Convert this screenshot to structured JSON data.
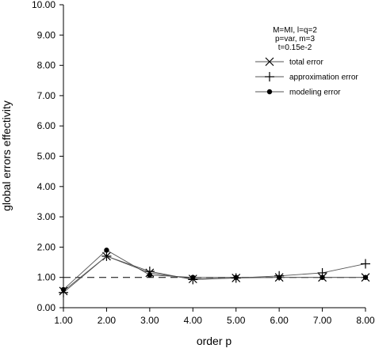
{
  "chart_data": {
    "type": "line",
    "xlabel": "order p",
    "ylabel": "global errors effectivity",
    "xlim": [
      1,
      8
    ],
    "ylim": [
      0,
      10
    ],
    "x_ticks": [
      "1.00",
      "2.00",
      "3.00",
      "4.00",
      "5.00",
      "6.00",
      "7.00",
      "8.00"
    ],
    "y_ticks": [
      "0.00",
      "1.00",
      "2.00",
      "3.00",
      "4.00",
      "5.00",
      "6.00",
      "7.00",
      "8.00",
      "9.00",
      "10.00"
    ],
    "grid": false,
    "legend_position": "top-right",
    "annotation_lines": [
      "M=MI, l=q=2",
      "p=var, m=3",
      "t=0.15e-2"
    ],
    "reference_line": {
      "y": 1.0,
      "style": "dashed"
    },
    "x": [
      1,
      2,
      3,
      4,
      5,
      6,
      7,
      8
    ],
    "series": [
      {
        "name": "total error",
        "marker": "x",
        "values": [
          0.55,
          1.7,
          1.15,
          0.95,
          0.98,
          1.0,
          1.0,
          1.0
        ]
      },
      {
        "name": "approximation error",
        "marker": "plus",
        "values": [
          0.5,
          1.7,
          1.2,
          0.93,
          0.98,
          1.05,
          1.15,
          1.45
        ]
      },
      {
        "name": "modeling error",
        "marker": "dot",
        "values": [
          0.6,
          1.9,
          1.08,
          1.0,
          1.0,
          1.0,
          1.0,
          1.0
        ]
      }
    ]
  }
}
